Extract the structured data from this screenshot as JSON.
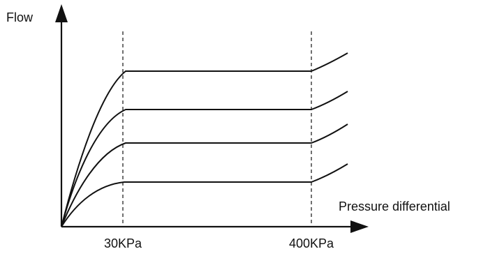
{
  "diagram": {
    "y_axis_label": "Flow",
    "x_axis_label": "Pressure differential",
    "markers": [
      {
        "label": "30KPa"
      },
      {
        "label": "400KPa"
      }
    ],
    "curve_count": 4,
    "line_color": "#111111",
    "background": "#ffffff"
  }
}
